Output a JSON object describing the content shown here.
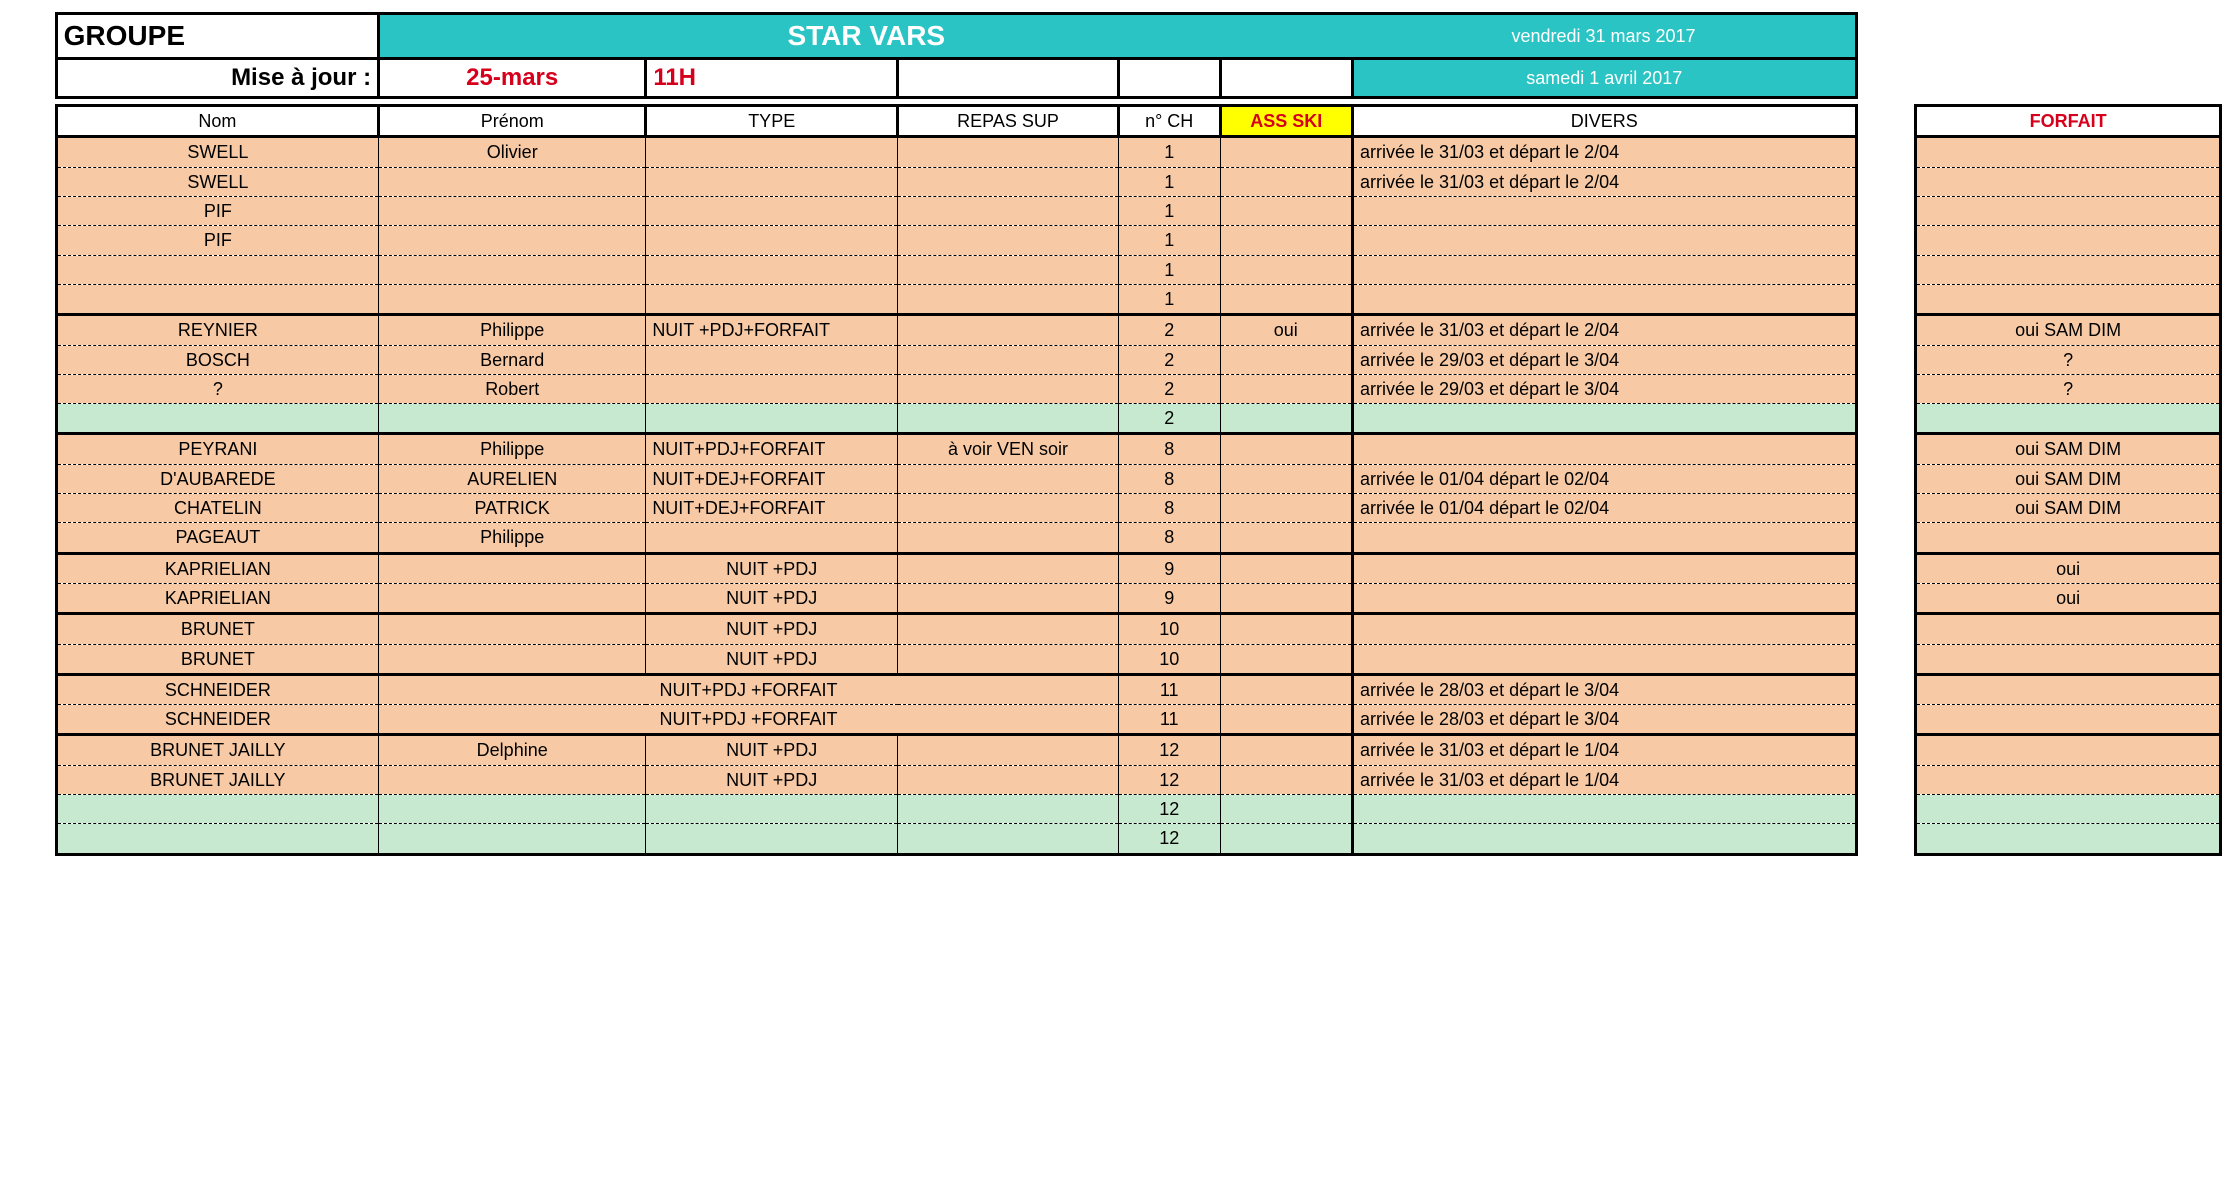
{
  "colors": {
    "peach": "#f7caa5",
    "mint": "#c7e9cf",
    "teal": "#2bc4c4",
    "yellow": "#ffff00",
    "red": "#d6001c",
    "border": "#000000",
    "white": "#ffffff"
  },
  "header": {
    "groupe_label": "GROUPE",
    "title": "STAR VARS",
    "date1": "vendredi 31 mars 2017",
    "maj_label": "Mise à jour :",
    "maj_date": "25-mars",
    "maj_time": "11H",
    "date2": "samedi 1 avril 2017"
  },
  "cols": {
    "nom": "Nom",
    "prenom": "Prénom",
    "type": "TYPE",
    "repas": "REPAS SUP",
    "ch": "n° CH",
    "ass": "ASS SKI",
    "divers": "DIVERS",
    "forfait": "FORFAIT"
  },
  "rows": [
    {
      "grp": "g1",
      "nom": "SWELL",
      "prenom": "Olivier",
      "type": "",
      "repas": "",
      "ch": "1",
      "ass": "",
      "divers": "arrivée le 31/03 et départ le 2/04",
      "forfait": "",
      "bg": "peach",
      "top": true
    },
    {
      "grp": "g1",
      "nom": "SWELL",
      "prenom": "",
      "type": "",
      "repas": "",
      "ch": "1",
      "ass": "",
      "divers": "arrivée le 31/03 et départ le 2/04",
      "forfait": "",
      "bg": "peach"
    },
    {
      "grp": "g1",
      "nom": "PIF",
      "prenom": "",
      "type": "",
      "repas": "",
      "ch": "1",
      "ass": "",
      "divers": "",
      "forfait": "",
      "bg": "peach"
    },
    {
      "grp": "g1",
      "nom": "PIF",
      "prenom": "",
      "type": "",
      "repas": "",
      "ch": "1",
      "ass": "",
      "divers": "",
      "forfait": "",
      "bg": "peach"
    },
    {
      "grp": "g1",
      "nom": "",
      "prenom": "",
      "type": "",
      "repas": "",
      "ch": "1",
      "ass": "",
      "divers": "",
      "forfait": "",
      "bg": "peach"
    },
    {
      "grp": "g1",
      "nom": "",
      "prenom": "",
      "type": "",
      "repas": "",
      "ch": "1",
      "ass": "",
      "divers": "",
      "forfait": "",
      "bg": "peach",
      "bot": true
    },
    {
      "grp": "g2",
      "nom": "REYNIER",
      "prenom": "Philippe",
      "type": "NUIT +PDJ+FORFAIT",
      "repas": "",
      "ch": "2",
      "ass": "oui",
      "divers": "arrivée le 31/03 et départ le 2/04",
      "forfait": "oui SAM DIM",
      "bg": "peach",
      "top": true
    },
    {
      "grp": "g2",
      "nom": "BOSCH",
      "prenom": "Bernard",
      "type": "",
      "repas": "",
      "ch": "2",
      "ass": "",
      "divers": "arrivée le 29/03 et départ le 3/04",
      "forfait": "?",
      "bg": "peach"
    },
    {
      "grp": "g2",
      "nom": "?",
      "prenom": "Robert",
      "type": "",
      "repas": "",
      "ch": "2",
      "ass": "",
      "divers": "arrivée le 29/03 et départ le 3/04",
      "forfait": "?",
      "bg": "peach"
    },
    {
      "grp": "g2",
      "nom": "",
      "prenom": "",
      "type": "",
      "repas": "",
      "ch": "2",
      "ass": "",
      "divers": "",
      "forfait": "",
      "bg": "mint",
      "bot": true
    },
    {
      "grp": "g3",
      "nom": "PEYRANI",
      "prenom": "Philippe",
      "type": "NUIT+PDJ+FORFAIT",
      "repas": "à voir VEN soir",
      "ch": "8",
      "ass": "",
      "divers": "",
      "forfait": "oui SAM DIM",
      "bg": "peach",
      "top": true
    },
    {
      "grp": "g3",
      "nom": "D'AUBAREDE",
      "prenom": "AURELIEN",
      "type": "NUIT+DEJ+FORFAIT",
      "repas": "",
      "ch": "8",
      "ass": "",
      "divers": "arrivée le 01/04 départ le 02/04",
      "forfait": "oui SAM DIM",
      "bg": "peach"
    },
    {
      "grp": "g3",
      "nom": "CHATELIN",
      "prenom": "PATRICK",
      "type": "NUIT+DEJ+FORFAIT",
      "repas": "",
      "ch": "8",
      "ass": "",
      "divers": "arrivée le 01/04 départ le 02/04",
      "forfait": "oui SAM DIM",
      "bg": "peach"
    },
    {
      "grp": "g3",
      "nom": "PAGEAUT",
      "prenom": "Philippe",
      "type": "",
      "repas": "",
      "ch": "8",
      "ass": "",
      "divers": "",
      "forfait": "",
      "bg": "peach",
      "bot": true
    },
    {
      "grp": "g4",
      "nom": "KAPRIELIAN",
      "prenom": "",
      "type": "NUIT +PDJ",
      "repas": "",
      "ch": "9",
      "ass": "",
      "divers": "",
      "forfait": "oui",
      "bg": "peach",
      "top": true
    },
    {
      "grp": "g4",
      "nom": "KAPRIELIAN",
      "prenom": "",
      "type": "NUIT +PDJ",
      "repas": "",
      "ch": "9",
      "ass": "",
      "divers": "",
      "forfait": "oui",
      "bg": "peach",
      "bot": true
    },
    {
      "grp": "g5",
      "nom": "BRUNET",
      "prenom": "",
      "type": "NUIT +PDJ",
      "repas": "",
      "ch": "10",
      "ass": "",
      "divers": "",
      "forfait": "",
      "bg": "peach",
      "top": true
    },
    {
      "grp": "g5",
      "nom": "BRUNET",
      "prenom": "",
      "type": "NUIT +PDJ",
      "repas": "",
      "ch": "10",
      "ass": "",
      "divers": "",
      "forfait": "",
      "bg": "peach",
      "bot": true
    },
    {
      "grp": "g6",
      "nom": "SCHNEIDER",
      "prenom": "",
      "type": "NUIT+PDJ +FORFAIT",
      "repas": "",
      "ch": "11",
      "ass": "",
      "divers": "arrivée le 28/03 et départ le 3/04",
      "forfait": "",
      "bg": "peach",
      "top": true,
      "mergeType": true
    },
    {
      "grp": "g6",
      "nom": "SCHNEIDER",
      "prenom": "",
      "type": "NUIT+PDJ +FORFAIT",
      "repas": "",
      "ch": "11",
      "ass": "",
      "divers": "arrivée le 28/03 et départ le 3/04",
      "forfait": "",
      "bg": "peach",
      "bot": true,
      "mergeType": true
    },
    {
      "grp": "g7",
      "nom": "BRUNET JAILLY",
      "prenom": "Delphine",
      "type": "NUIT +PDJ",
      "repas": "",
      "ch": "12",
      "ass": "",
      "divers": "arrivée le 31/03 et départ le 1/04",
      "forfait": "",
      "bg": "peach",
      "top": true
    },
    {
      "grp": "g7",
      "nom": "BRUNET JAILLY",
      "prenom": "",
      "type": "NUIT +PDJ",
      "repas": "",
      "ch": "12",
      "ass": "",
      "divers": "arrivée le 31/03 et départ le 1/04",
      "forfait": "",
      "bg": "peach"
    },
    {
      "grp": "g7",
      "nom": "",
      "prenom": "",
      "type": "",
      "repas": "",
      "ch": "12",
      "ass": "",
      "divers": "",
      "forfait": "",
      "bg": "mint"
    },
    {
      "grp": "g7",
      "nom": "",
      "prenom": "",
      "type": "",
      "repas": "",
      "ch": "12",
      "ass": "",
      "divers": "",
      "forfait": "",
      "bg": "mint",
      "bot": true
    }
  ],
  "widths_pct": {
    "gutter": 2.0,
    "nom": 14.6,
    "prenom": 12.1,
    "type": 11.4,
    "repas": 10.0,
    "ch": 4.6,
    "ass": 6.0,
    "divers": 22.8,
    "gap": 2.7,
    "forfait": 13.8
  }
}
